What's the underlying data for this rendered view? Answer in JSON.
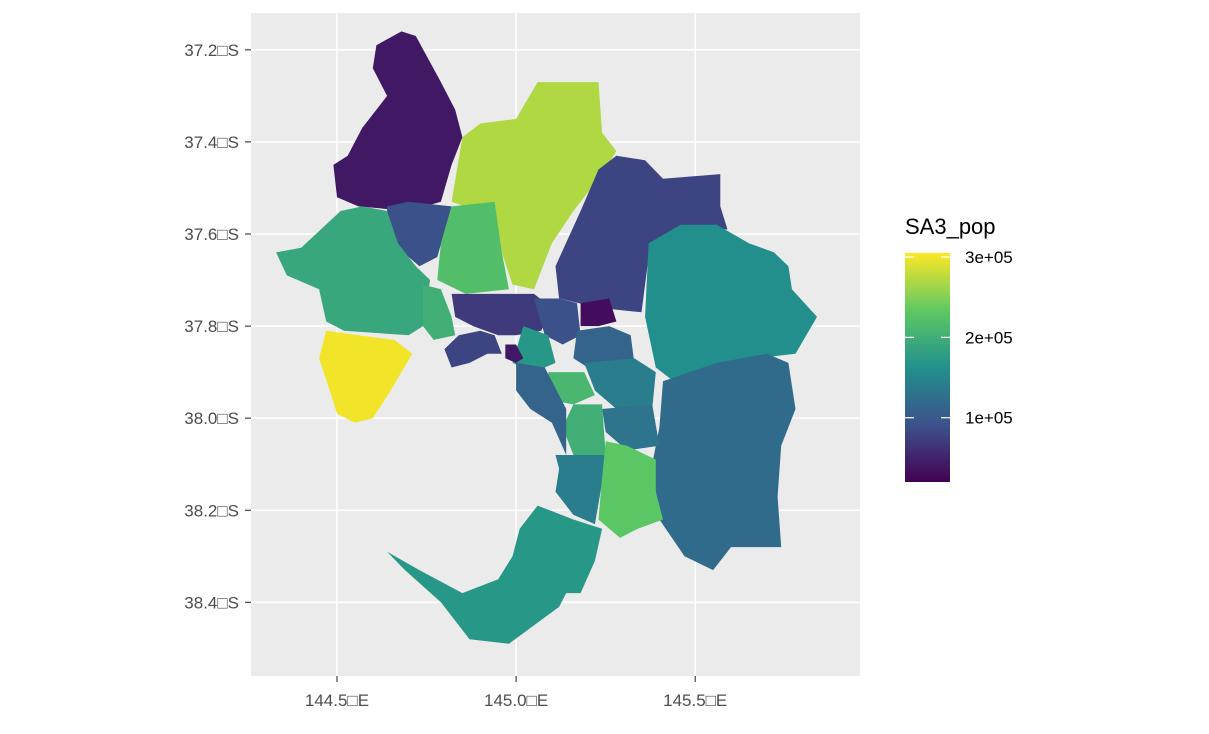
{
  "chart_data": {
    "type": "choropleth",
    "fill_variable": "SA3_pop",
    "legend": {
      "title": "SA3_pop",
      "placement": "right",
      "ticks": [
        {
          "value": 300000,
          "label": "3e+05"
        },
        {
          "value": 200000,
          "label": "2e+05"
        },
        {
          "value": 100000,
          "label": "1e+05"
        }
      ],
      "range": [
        20000,
        305000
      ],
      "palette": [
        "#440154",
        "#3b528b",
        "#21918c",
        "#5ec962",
        "#fde725"
      ]
    },
    "x_axis": {
      "ticks": [
        {
          "value": 144.5,
          "label": "144.5□E"
        },
        {
          "value": 145.0,
          "label": "145.0□E"
        },
        {
          "value": 145.5,
          "label": "145.5□E"
        }
      ],
      "range": [
        144.26,
        145.96
      ]
    },
    "y_axis": {
      "ticks": [
        {
          "value": -37.2,
          "label": "37.2□S"
        },
        {
          "value": -37.4,
          "label": "37.4□S"
        },
        {
          "value": -37.6,
          "label": "37.6□S"
        },
        {
          "value": -37.8,
          "label": "37.8□S"
        },
        {
          "value": -38.0,
          "label": "38.0□S"
        },
        {
          "value": -38.2,
          "label": "38.2□S"
        },
        {
          "value": -38.4,
          "label": "38.4□S"
        }
      ],
      "range": [
        -38.56,
        -37.12
      ]
    },
    "grid": true,
    "background": "#ebebeb",
    "regions": [
      {
        "value": 40000,
        "lonlat": [
          [
            144.61,
            -37.19
          ],
          [
            144.68,
            -37.16
          ],
          [
            144.72,
            -37.17
          ],
          [
            144.79,
            -37.27
          ],
          [
            144.83,
            -37.33
          ],
          [
            144.85,
            -37.39
          ],
          [
            144.82,
            -37.45
          ],
          [
            144.79,
            -37.53
          ],
          [
            144.7,
            -37.55
          ],
          [
            144.56,
            -37.54
          ],
          [
            144.5,
            -37.52
          ],
          [
            144.49,
            -37.45
          ],
          [
            144.53,
            -37.43
          ],
          [
            144.57,
            -37.37
          ],
          [
            144.64,
            -37.3
          ],
          [
            144.6,
            -37.24
          ]
        ]
      },
      {
        "value": 90000,
        "lonlat": [
          [
            144.64,
            -37.54
          ],
          [
            144.7,
            -37.53
          ],
          [
            144.82,
            -37.54
          ],
          [
            144.78,
            -37.65
          ],
          [
            144.73,
            -37.67
          ],
          [
            144.67,
            -37.63
          ],
          [
            144.64,
            -37.58
          ]
        ]
      },
      {
        "value": 270000,
        "lonlat": [
          [
            144.85,
            -37.39
          ],
          [
            144.9,
            -37.36
          ],
          [
            145.0,
            -37.35
          ],
          [
            145.06,
            -37.27
          ],
          [
            145.23,
            -37.27
          ],
          [
            145.24,
            -37.38
          ],
          [
            145.28,
            -37.42
          ],
          [
            145.24,
            -37.47
          ],
          [
            145.16,
            -37.55
          ],
          [
            145.1,
            -37.62
          ],
          [
            145.05,
            -37.72
          ],
          [
            144.99,
            -37.71
          ],
          [
            144.96,
            -37.64
          ],
          [
            144.94,
            -37.56
          ],
          [
            144.82,
            -37.53
          ]
        ]
      },
      {
        "value": 220000,
        "lonlat": [
          [
            144.82,
            -37.54
          ],
          [
            144.94,
            -37.53
          ],
          [
            144.96,
            -37.64
          ],
          [
            144.98,
            -37.72
          ],
          [
            144.86,
            -37.73
          ],
          [
            144.78,
            -37.7
          ],
          [
            144.79,
            -37.62
          ]
        ]
      },
      {
        "value": 80000,
        "lonlat": [
          [
            145.18,
            -37.55
          ],
          [
            145.23,
            -37.46
          ],
          [
            145.28,
            -37.43
          ],
          [
            145.36,
            -37.44
          ],
          [
            145.41,
            -37.48
          ],
          [
            145.57,
            -37.47
          ],
          [
            145.57,
            -37.54
          ],
          [
            145.59,
            -37.59
          ],
          [
            145.46,
            -37.59
          ],
          [
            145.37,
            -37.65
          ],
          [
            145.35,
            -37.77
          ],
          [
            145.23,
            -37.76
          ],
          [
            145.12,
            -37.74
          ],
          [
            145.11,
            -37.67
          ]
        ]
      },
      {
        "value": 160000,
        "lonlat": [
          [
            145.37,
            -37.62
          ],
          [
            145.46,
            -37.58
          ],
          [
            145.56,
            -37.58
          ],
          [
            145.65,
            -37.62
          ],
          [
            145.72,
            -37.64
          ],
          [
            145.76,
            -37.67
          ],
          [
            145.77,
            -37.72
          ],
          [
            145.84,
            -37.78
          ],
          [
            145.78,
            -37.86
          ],
          [
            145.67,
            -37.87
          ],
          [
            145.58,
            -37.89
          ],
          [
            145.44,
            -37.92
          ],
          [
            145.39,
            -37.89
          ],
          [
            145.36,
            -37.78
          ]
        ]
      },
      {
        "value": 120000,
        "lonlat": [
          [
            145.41,
            -37.92
          ],
          [
            145.56,
            -37.88
          ],
          [
            145.7,
            -37.86
          ],
          [
            145.76,
            -37.88
          ],
          [
            145.78,
            -37.98
          ],
          [
            145.74,
            -38.06
          ],
          [
            145.73,
            -38.17
          ],
          [
            145.74,
            -38.28
          ],
          [
            145.6,
            -38.28
          ],
          [
            145.55,
            -38.33
          ],
          [
            145.47,
            -38.3
          ],
          [
            145.4,
            -38.22
          ],
          [
            145.38,
            -38.1
          ],
          [
            145.4,
            -38.02
          ]
        ]
      },
      {
        "value": 190000,
        "lonlat": [
          [
            144.33,
            -37.64
          ],
          [
            144.4,
            -37.63
          ],
          [
            144.51,
            -37.55
          ],
          [
            144.57,
            -37.54
          ],
          [
            144.64,
            -37.55
          ],
          [
            144.67,
            -37.62
          ],
          [
            144.72,
            -37.67
          ],
          [
            144.76,
            -37.7
          ],
          [
            144.74,
            -37.8
          ],
          [
            144.7,
            -37.82
          ],
          [
            144.52,
            -37.81
          ],
          [
            144.47,
            -37.79
          ],
          [
            144.45,
            -37.72
          ],
          [
            144.36,
            -37.69
          ]
        ]
      },
      {
        "value": 200000,
        "lonlat": [
          [
            144.74,
            -37.71
          ],
          [
            144.79,
            -37.72
          ],
          [
            144.82,
            -37.78
          ],
          [
            144.83,
            -37.82
          ],
          [
            144.77,
            -37.83
          ],
          [
            144.74,
            -37.8
          ]
        ]
      },
      {
        "value": 300000,
        "lonlat": [
          [
            144.47,
            -37.81
          ],
          [
            144.56,
            -37.82
          ],
          [
            144.66,
            -37.83
          ],
          [
            144.71,
            -37.86
          ],
          [
            144.65,
            -37.94
          ],
          [
            144.6,
            -38.0
          ],
          [
            144.55,
            -38.01
          ],
          [
            144.5,
            -37.99
          ],
          [
            144.48,
            -37.94
          ],
          [
            144.45,
            -37.87
          ]
        ]
      },
      {
        "value": 80000,
        "lonlat": [
          [
            144.8,
            -37.85
          ],
          [
            144.84,
            -37.82
          ],
          [
            144.9,
            -37.81
          ],
          [
            144.94,
            -37.82
          ],
          [
            144.96,
            -37.86
          ],
          [
            144.92,
            -37.86
          ],
          [
            144.87,
            -37.88
          ],
          [
            144.82,
            -37.89
          ]
        ]
      },
      {
        "value": 70000,
        "lonlat": [
          [
            144.82,
            -37.73
          ],
          [
            144.94,
            -37.73
          ],
          [
            145.05,
            -37.73
          ],
          [
            145.1,
            -37.76
          ],
          [
            145.07,
            -37.81
          ],
          [
            145.0,
            -37.82
          ],
          [
            144.95,
            -37.82
          ],
          [
            144.88,
            -37.8
          ],
          [
            144.83,
            -37.78
          ]
        ]
      },
      {
        "value": 90000,
        "lonlat": [
          [
            145.05,
            -37.74
          ],
          [
            145.12,
            -37.74
          ],
          [
            145.17,
            -37.75
          ],
          [
            145.18,
            -37.82
          ],
          [
            145.13,
            -37.84
          ],
          [
            145.08,
            -37.82
          ]
        ]
      },
      {
        "value": 30000,
        "lonlat": [
          [
            145.18,
            -37.75
          ],
          [
            145.26,
            -37.74
          ],
          [
            145.28,
            -37.79
          ],
          [
            145.23,
            -37.8
          ],
          [
            145.18,
            -37.8
          ]
        ]
      },
      {
        "value": 110000,
        "lonlat": [
          [
            145.17,
            -37.81
          ],
          [
            145.26,
            -37.8
          ],
          [
            145.32,
            -37.82
          ],
          [
            145.33,
            -37.88
          ],
          [
            145.22,
            -37.9
          ],
          [
            145.16,
            -37.87
          ]
        ]
      },
      {
        "value": 170000,
        "lonlat": [
          [
            145.02,
            -37.8
          ],
          [
            145.09,
            -37.82
          ],
          [
            145.11,
            -37.88
          ],
          [
            145.05,
            -37.9
          ],
          [
            144.99,
            -37.88
          ]
        ]
      },
      {
        "value": 40000,
        "lonlat": [
          [
            144.97,
            -37.84
          ],
          [
            145.0,
            -37.84
          ],
          [
            145.02,
            -37.87
          ],
          [
            145.0,
            -37.88
          ],
          [
            144.97,
            -37.87
          ]
        ]
      },
      {
        "value": 210000,
        "lonlat": [
          [
            145.09,
            -37.9
          ],
          [
            145.19,
            -37.9
          ],
          [
            145.22,
            -37.95
          ],
          [
            145.16,
            -37.97
          ],
          [
            145.09,
            -37.96
          ]
        ]
      },
      {
        "value": 140000,
        "lonlat": [
          [
            145.19,
            -37.88
          ],
          [
            145.33,
            -37.87
          ],
          [
            145.39,
            -37.9
          ],
          [
            145.38,
            -37.98
          ],
          [
            145.28,
            -37.98
          ],
          [
            145.22,
            -37.94
          ]
        ]
      },
      {
        "value": 130000,
        "lonlat": [
          [
            145.24,
            -37.98
          ],
          [
            145.38,
            -37.97
          ],
          [
            145.4,
            -38.06
          ],
          [
            145.31,
            -38.07
          ],
          [
            145.25,
            -38.03
          ]
        ]
      },
      {
        "value": 200000,
        "lonlat": [
          [
            145.16,
            -37.97
          ],
          [
            145.24,
            -37.97
          ],
          [
            145.25,
            -38.08
          ],
          [
            145.16,
            -38.08
          ],
          [
            145.13,
            -38.02
          ]
        ]
      },
      {
        "value": 110000,
        "lonlat": [
          [
            145.0,
            -37.88
          ],
          [
            145.08,
            -37.89
          ],
          [
            145.14,
            -37.98
          ],
          [
            145.14,
            -38.08
          ],
          [
            145.1,
            -38.01
          ],
          [
            145.04,
            -37.98
          ],
          [
            145.0,
            -37.94
          ]
        ]
      },
      {
        "value": 140000,
        "lonlat": [
          [
            145.11,
            -38.08
          ],
          [
            145.25,
            -38.08
          ],
          [
            145.24,
            -38.14
          ],
          [
            145.22,
            -38.23
          ],
          [
            145.16,
            -38.21
          ],
          [
            145.11,
            -38.16
          ],
          [
            145.12,
            -38.11
          ]
        ]
      },
      {
        "value": 230000,
        "lonlat": [
          [
            145.25,
            -38.05
          ],
          [
            145.31,
            -38.06
          ],
          [
            145.39,
            -38.09
          ],
          [
            145.39,
            -38.16
          ],
          [
            145.41,
            -38.22
          ],
          [
            145.34,
            -38.24
          ],
          [
            145.29,
            -38.26
          ],
          [
            145.23,
            -38.22
          ],
          [
            145.24,
            -38.13
          ]
        ]
      },
      {
        "value": 170000,
        "lonlat": [
          [
            145.06,
            -38.19
          ],
          [
            145.16,
            -38.22
          ],
          [
            145.24,
            -38.24
          ],
          [
            145.22,
            -38.31
          ],
          [
            145.18,
            -38.38
          ],
          [
            145.14,
            -38.38
          ],
          [
            145.12,
            -38.41
          ],
          [
            144.98,
            -38.49
          ],
          [
            144.87,
            -38.48
          ],
          [
            144.79,
            -38.4
          ],
          [
            144.69,
            -38.33
          ],
          [
            144.64,
            -38.29
          ],
          [
            144.73,
            -38.33
          ],
          [
            144.85,
            -38.38
          ],
          [
            144.95,
            -38.35
          ],
          [
            144.99,
            -38.3
          ],
          [
            145.01,
            -38.24
          ]
        ]
      }
    ]
  }
}
